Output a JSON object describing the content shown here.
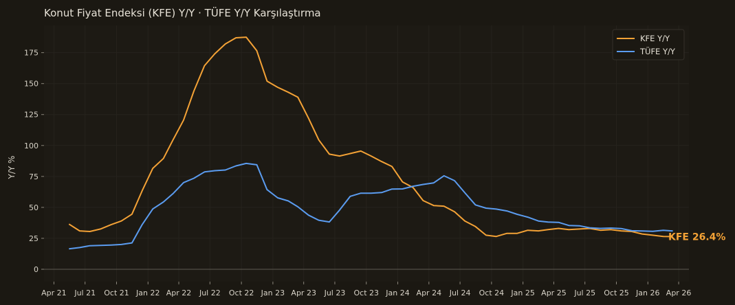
{
  "title": "Konut Fiyat Endeksi (KFE) Y/Y · TÜFE Y/Y Karşılaştırma",
  "colors": {
    "background": "#1b1812",
    "plot_background": "#1d1a14",
    "kfe": "#f4a236",
    "tufe": "#5b9cf0",
    "grid": "#26231d",
    "zero_line": "#5e5a52"
  },
  "chart_data": {
    "type": "line",
    "title": "Konut Fiyat Endeksi (KFE) Y/Y · TÜFE Y/Y Karşılaştırma",
    "xlabel": "",
    "ylabel": "Y/Y %",
    "ylim": [
      -10,
      197
    ],
    "yticks": [
      0,
      25,
      50,
      75,
      100,
      125,
      150,
      175
    ],
    "xlim": [
      "2021-03-03",
      "2026-05-01"
    ],
    "x_tick_dates": [
      "2021-04-01",
      "2021-07-01",
      "2021-10-01",
      "2022-01-01",
      "2022-04-01",
      "2022-07-01",
      "2022-10-01",
      "2023-01-01",
      "2023-04-01",
      "2023-07-01",
      "2023-10-01",
      "2024-01-01",
      "2024-04-01",
      "2024-07-01",
      "2024-10-01",
      "2025-01-01",
      "2025-04-01",
      "2025-07-01",
      "2025-10-01",
      "2026-01-01",
      "2026-04-01"
    ],
    "x_tick_labels": [
      "Apr 21",
      "Jul 21",
      "Oct 21",
      "Jan 22",
      "Apr 22",
      "Jul 22",
      "Oct 22",
      "Jan 23",
      "Apr 23",
      "Jul 23",
      "Oct 23",
      "Jan 24",
      "Apr 24",
      "Jul 24",
      "Oct 24",
      "Jan 25",
      "Apr 25",
      "Jul 25",
      "Oct 25",
      "Jan 26",
      "Apr 26"
    ],
    "grid": true,
    "legend_position": "top-right",
    "x": [
      "2021-05",
      "2021-06",
      "2021-07",
      "2021-08",
      "2021-09",
      "2021-10",
      "2021-11",
      "2021-12",
      "2022-01",
      "2022-02",
      "2022-03",
      "2022-04",
      "2022-05",
      "2022-06",
      "2022-07",
      "2022-08",
      "2022-09",
      "2022-10",
      "2022-11",
      "2022-12",
      "2023-01",
      "2023-02",
      "2023-03",
      "2023-04",
      "2023-05",
      "2023-06",
      "2023-07",
      "2023-08",
      "2023-09",
      "2023-10",
      "2023-11",
      "2023-12",
      "2024-01",
      "2024-02",
      "2024-03",
      "2024-04",
      "2024-05",
      "2024-06",
      "2024-07",
      "2024-08",
      "2024-09",
      "2024-10",
      "2024-11",
      "2024-12",
      "2025-01",
      "2025-02",
      "2025-03",
      "2025-04",
      "2025-05",
      "2025-06",
      "2025-07",
      "2025-08",
      "2025-09",
      "2025-10",
      "2025-11",
      "2025-12",
      "2026-01",
      "2026-02",
      "2026-03"
    ],
    "series": [
      {
        "name": "KFE Y/Y",
        "color": "#f4a236",
        "values": [
          36.5,
          31.0,
          30.5,
          32.5,
          36.0,
          39.0,
          44.5,
          63.5,
          81.5,
          89.5,
          104.5,
          120.5,
          144.0,
          164.5,
          174.0,
          182.0,
          187.0,
          187.5,
          176.5,
          152.0,
          147.0,
          143.0,
          139.0,
          122.0,
          104.5,
          93.0,
          91.5,
          93.5,
          95.5,
          91.5,
          87.0,
          83.0,
          70.5,
          66.0,
          55.5,
          51.5,
          51.0,
          46.5,
          39.0,
          34.5,
          27.5,
          26.5,
          29.0,
          29.0,
          31.5,
          31.0,
          32.0,
          33.0,
          32.0,
          32.5,
          33.0,
          31.5,
          32.0,
          31.0,
          30.5,
          28.5,
          27.5,
          26.5,
          26.4
        ]
      },
      {
        "name": "TÜFE Y/Y",
        "color": "#5b9cf0",
        "values": [
          16.5,
          17.5,
          19.0,
          19.3,
          19.6,
          20.0,
          21.3,
          36.1,
          48.7,
          54.4,
          61.1,
          70.0,
          73.5,
          78.6,
          79.6,
          80.2,
          83.5,
          85.5,
          84.4,
          64.3,
          57.7,
          55.2,
          50.5,
          43.7,
          39.6,
          38.2,
          47.8,
          58.9,
          61.5,
          61.4,
          62.0,
          64.8,
          64.9,
          67.1,
          68.5,
          69.8,
          75.5,
          71.6,
          61.8,
          52.0,
          49.4,
          48.6,
          47.1,
          44.4,
          42.1,
          39.0,
          38.1,
          37.9,
          35.4,
          35.1,
          33.5,
          33.0,
          33.3,
          32.9,
          31.1,
          30.9,
          30.7,
          31.5,
          30.9
        ]
      }
    ],
    "end_label": "KFE 26.4%"
  }
}
